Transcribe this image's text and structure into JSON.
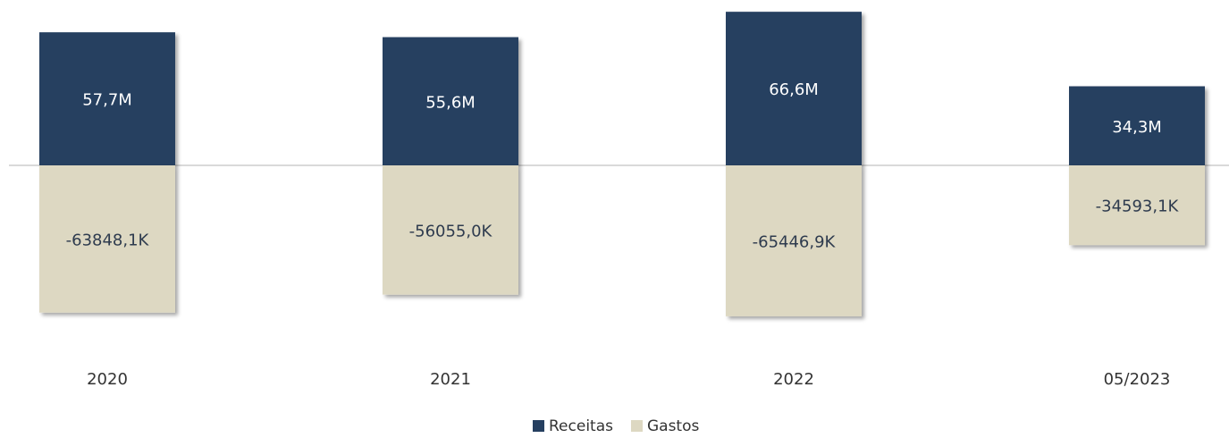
{
  "chart_data": {
    "type": "bar",
    "categories": [
      "2020",
      "2021",
      "2022",
      "05/2023"
    ],
    "series": [
      {
        "name": "Receitas",
        "color": "#253f60",
        "values": [
          57700000,
          55600000,
          66600000,
          34300000
        ],
        "value_labels": [
          "57,7M",
          "55,6M",
          "66,6M",
          "34,3M"
        ]
      },
      {
        "name": "Gastos",
        "color": "#ddd8c2",
        "values": [
          -63848100,
          -56055000,
          -65446900,
          -34593100
        ],
        "value_labels": [
          "-63848,1K",
          "-56055,0K",
          "-65446,9K",
          "-34593,1K"
        ]
      }
    ],
    "legend": "bottom"
  }
}
